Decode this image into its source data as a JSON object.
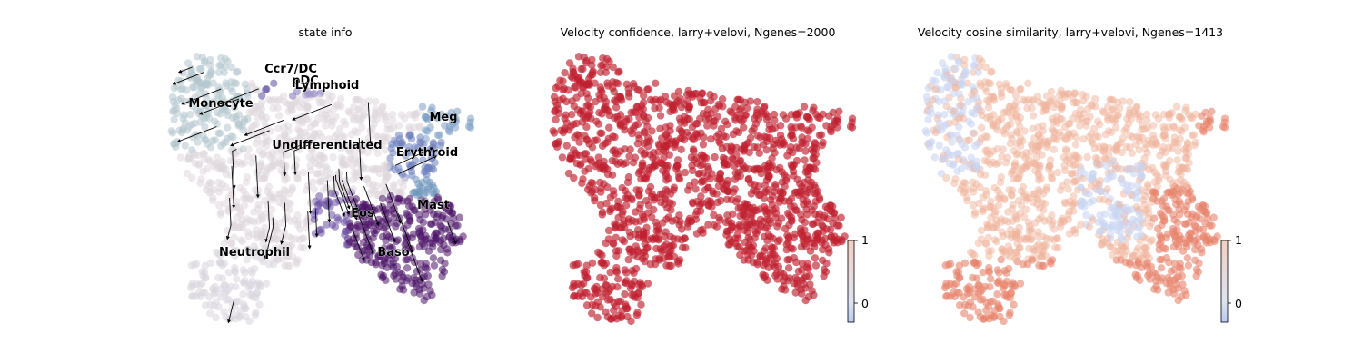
{
  "chart_data": [
    {
      "type": "scatter",
      "title": "state info",
      "legend": "on data",
      "clusters": [
        {
          "name": "Ccr7_DC",
          "color": "#5b4a9f"
        },
        {
          "name": "pDC",
          "color": "#8073b6"
        },
        {
          "name": "Lymphoid",
          "color": "#9c93c6"
        },
        {
          "name": "Monocyte",
          "color": "#b5c7cd"
        },
        {
          "name": "Meg",
          "color": "#7b9fc4"
        },
        {
          "name": "Undifferentiated",
          "color": "#ded7dd"
        },
        {
          "name": "Erythroid",
          "color": "#6e7fbd"
        },
        {
          "name": "Mast",
          "color": "#6e93bb"
        },
        {
          "name": "Eos",
          "color": "#6a4fa2"
        },
        {
          "name": "Baso",
          "color": "#4a1368"
        },
        {
          "name": "Neutrophil",
          "color": "#d8d6de"
        }
      ],
      "streamlines": true
    },
    {
      "type": "scatter",
      "title": "Velocity confidence, larry+velovi, Ngenes=2000",
      "colormap": "coolwarm",
      "colorbar": {
        "ticks": [
          0,
          1
        ],
        "range": [
          -0.3,
          1
        ]
      },
      "point_color": "#c0202f"
    },
    {
      "type": "scatter",
      "title": "Velocity cosine similarity, larry+velovi, Ngenes=1413",
      "colormap": "coolwarm",
      "colorbar": {
        "ticks": [
          0,
          1
        ],
        "range": [
          -0.3,
          1
        ]
      },
      "point_color": "#efb39c"
    }
  ]
}
